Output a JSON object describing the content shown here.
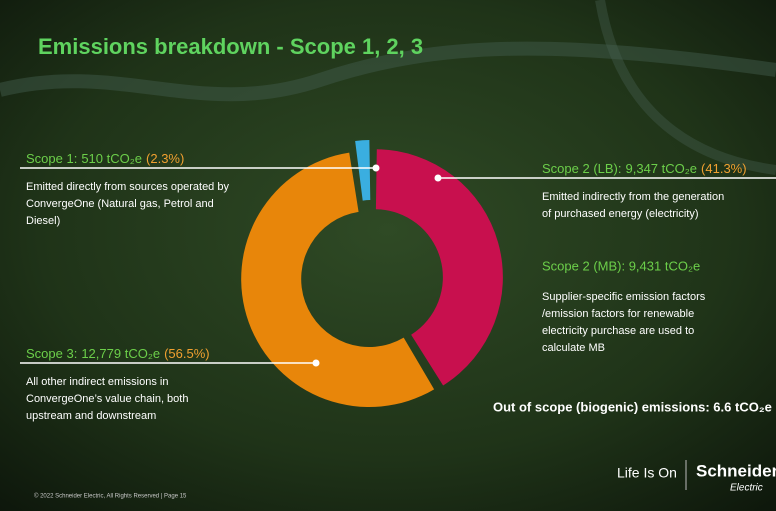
{
  "chart_data": {
    "type": "donut",
    "title": "Emissions breakdown - Scope 1, 2, 3",
    "categories": [
      "Scope 1:",
      "Scope 2 (LB):",
      "Scope 3:"
    ],
    "values": [
      510,
      9347,
      12779
    ],
    "value_labels": [
      "510 tCO₂e",
      "9,347 tCO₂e",
      "12,779 tCO₂e"
    ],
    "percent_labels": [
      "(2.3%)",
      "(41.3%)",
      "(56.5%)"
    ],
    "colors": [
      "#3aaee0",
      "#c8104e",
      "#e8860a"
    ],
    "descriptions": [
      [
        "Emitted directly from sources operated by",
        "ConvergeOne (Natural gas, Petrol and",
        "Diesel)"
      ],
      [
        "Emitted indirectly from the generation",
        "of purchased energy (electricity)"
      ],
      [
        "All other indirect emissions in",
        "ConvergeOne’s value chain, both",
        "upstream and downstream"
      ]
    ],
    "annotations": {
      "scope2_mb": {
        "heading": "Scope 2 (MB): 9,431 tCO₂e",
        "lines": [
          "Supplier-specific emission factors",
          "/emission factors for renewable",
          "electricity purchase are used to",
          "calculate MB"
        ]
      },
      "out_of_scope": "Out of scope (biogenic) emissions: 6.6 tCO₂e"
    },
    "footer": {
      "copyright": "© 2022 Schneider Electric, All Rights Reserved | Page 15",
      "tagline": "Life Is On",
      "brand": "Schneider",
      "brand_sub": "Electric"
    }
  }
}
